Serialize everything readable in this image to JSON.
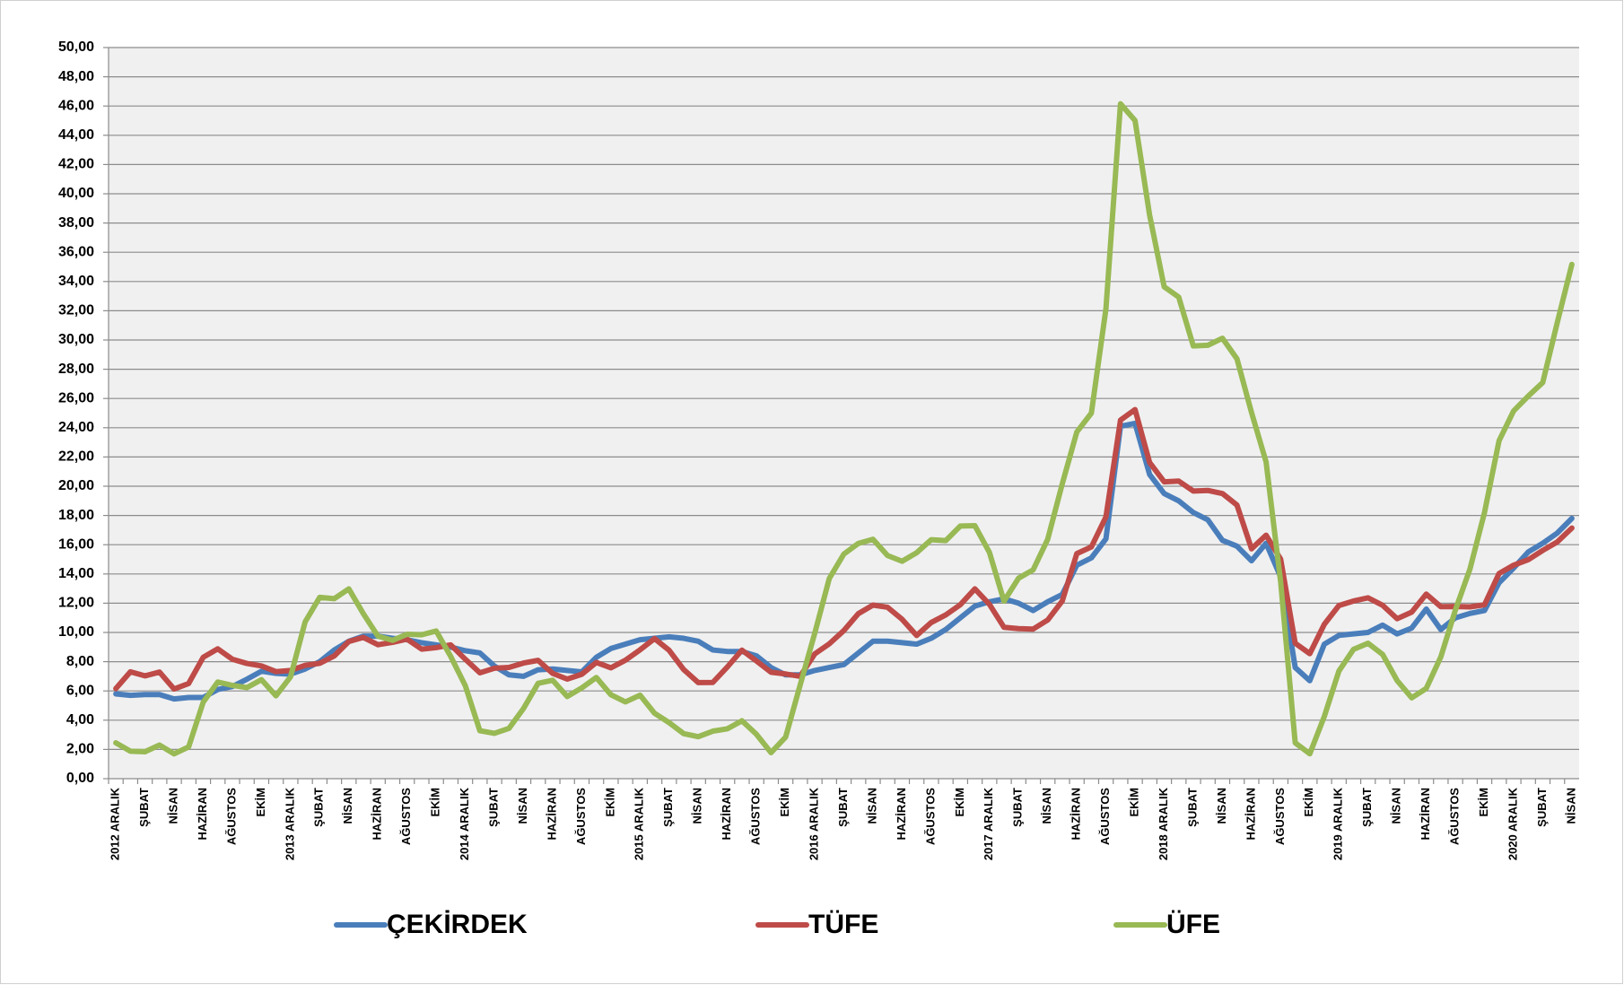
{
  "chart_data": {
    "type": "line",
    "categories": [
      "2012 ARALIK",
      null,
      "ŞUBAT",
      null,
      "NİSAN",
      null,
      "HAZİRAN",
      null,
      "AĞUSTOS",
      null,
      "EKİM",
      null,
      "2013 ARALIK",
      null,
      "ŞUBAT",
      null,
      "NİSAN",
      null,
      "HAZİRAN",
      null,
      "AĞUSTOS",
      null,
      "EKİM",
      null,
      "2014 ARALIK",
      null,
      "ŞUBAT",
      null,
      "NİSAN",
      null,
      "HAZİRAN",
      null,
      "AĞUSTOS",
      null,
      "EKİM",
      null,
      "2015 ARALIK",
      null,
      "ŞUBAT",
      null,
      "NİSAN",
      null,
      "HAZİRAN",
      null,
      "AĞUSTOS",
      null,
      "EKİM",
      null,
      "2016 ARALIK",
      null,
      "ŞUBAT",
      null,
      "NİSAN",
      null,
      "HAZİRAN",
      null,
      "AĞUSTOS",
      null,
      "EKİM",
      null,
      "2017 ARALIK",
      null,
      "ŞUBAT",
      null,
      "NİSAN",
      null,
      "HAZİRAN",
      null,
      "AĞUSTOS",
      null,
      "EKİM",
      null,
      "2018 ARALIK",
      null,
      "ŞUBAT",
      null,
      "NİSAN",
      null,
      "HAZİRAN",
      null,
      "AĞUSTOS",
      null,
      "EKİM",
      null,
      "2019 ARALIK",
      null,
      "ŞUBAT",
      null,
      "NİSAN",
      null,
      "HAZİRAN",
      null,
      "AĞUSTOS",
      null,
      "EKİM",
      null,
      "2020 ARALIK",
      null,
      "ŞUBAT",
      null,
      "NİSAN"
    ],
    "series": [
      {
        "name": "ÇEKİRDEK",
        "color": "#4a7ebb",
        "values": [
          5.8,
          5.7,
          5.75,
          5.75,
          5.45,
          5.55,
          5.55,
          6.1,
          6.3,
          6.8,
          7.35,
          7.2,
          7.15,
          7.5,
          8.0,
          8.8,
          9.4,
          9.75,
          9.75,
          9.6,
          9.5,
          9.3,
          9.15,
          9.0,
          8.75,
          8.6,
          7.7,
          7.1,
          7.0,
          7.45,
          7.5,
          7.4,
          7.3,
          8.3,
          8.9,
          9.2,
          9.5,
          9.6,
          9.7,
          9.6,
          9.4,
          8.8,
          8.7,
          8.7,
          8.4,
          7.6,
          7.1,
          7.1,
          7.4,
          7.6,
          7.8,
          8.6,
          9.4,
          9.4,
          9.3,
          9.2,
          9.6,
          10.2,
          11.0,
          11.8,
          12.1,
          12.3,
          12.0,
          11.5,
          12.1,
          12.6,
          14.6,
          15.1,
          16.4,
          24.1,
          24.3,
          20.8,
          19.5,
          19.0,
          18.2,
          17.7,
          16.3,
          15.9,
          14.9,
          16.1,
          13.8,
          7.6,
          6.7,
          9.2,
          9.8,
          9.9,
          10.0,
          10.5,
          9.9,
          10.3,
          11.6,
          10.2,
          11.0,
          11.3,
          11.5,
          13.4,
          14.4,
          15.5,
          16.1,
          16.8,
          17.8
        ]
      },
      {
        "name": "TÜFE",
        "color": "#be4b48",
        "values": [
          6.16,
          7.31,
          7.03,
          7.29,
          6.13,
          6.51,
          8.3,
          8.88,
          8.17,
          7.88,
          7.71,
          7.32,
          7.4,
          7.75,
          7.89,
          8.39,
          9.38,
          9.66,
          9.16,
          9.32,
          9.54,
          8.86,
          8.96,
          9.15,
          8.17,
          7.24,
          7.55,
          7.61,
          7.91,
          8.09,
          7.2,
          6.81,
          7.14,
          7.95,
          7.58,
          8.1,
          8.81,
          9.58,
          8.78,
          7.46,
          6.57,
          6.58,
          7.64,
          8.79,
          8.05,
          7.28,
          7.16,
          7.0,
          8.53,
          9.22,
          10.13,
          11.29,
          11.87,
          11.72,
          10.9,
          9.79,
          10.68,
          11.2,
          11.9,
          12.98,
          11.92,
          10.35,
          10.26,
          10.23,
          10.85,
          12.15,
          15.39,
          15.85,
          17.9,
          24.52,
          25.24,
          21.62,
          20.3,
          20.35,
          19.67,
          19.71,
          19.5,
          18.71,
          15.72,
          16.65,
          15.01,
          9.26,
          8.55,
          10.56,
          11.84,
          12.15,
          12.37,
          11.86,
          10.94,
          11.39,
          12.62,
          11.76,
          11.77,
          11.75,
          11.89,
          14.03,
          14.6,
          14.97,
          15.61,
          16.19,
          17.14
        ]
      },
      {
        "name": "ÜFE",
        "color": "#98b954",
        "values": [
          2.45,
          1.88,
          1.84,
          2.3,
          1.7,
          2.17,
          5.23,
          6.61,
          6.38,
          6.23,
          6.77,
          5.67,
          6.97,
          10.72,
          12.4,
          12.31,
          12.98,
          11.28,
          9.75,
          9.46,
          9.88,
          9.84,
          10.1,
          8.36,
          6.36,
          3.28,
          3.1,
          3.44,
          4.8,
          6.52,
          6.73,
          5.62,
          6.21,
          6.92,
          5.74,
          5.25,
          5.71,
          4.47,
          3.83,
          3.08,
          2.87,
          3.25,
          3.41,
          3.96,
          3.03,
          1.78,
          2.84,
          6.41,
          9.94,
          13.69,
          15.36,
          16.09,
          16.37,
          15.26,
          14.87,
          15.45,
          16.34,
          16.28,
          17.28,
          17.3,
          15.47,
          12.14,
          13.71,
          14.28,
          16.37,
          20.16,
          23.71,
          25.0,
          32.13,
          46.15,
          45.01,
          38.54,
          33.64,
          32.93,
          29.59,
          29.64,
          30.12,
          28.71,
          25.04,
          21.66,
          13.45,
          2.45,
          1.7,
          4.26,
          7.36,
          8.84,
          9.26,
          8.5,
          6.71,
          5.53,
          6.17,
          8.33,
          11.53,
          14.33,
          18.2,
          23.11,
          25.15,
          26.16,
          27.09,
          31.2,
          35.17
        ]
      }
    ],
    "ylim": [
      0,
      50
    ],
    "yticks": [
      {
        "value": 0,
        "label": "0,00"
      },
      {
        "value": 2,
        "label": "2,00"
      },
      {
        "value": 4,
        "label": "4,00"
      },
      {
        "value": 6,
        "label": "6,00"
      },
      {
        "value": 8,
        "label": "8,00"
      },
      {
        "value": 10,
        "label": "10,00"
      },
      {
        "value": 12,
        "label": "12,00"
      },
      {
        "value": 14,
        "label": "14,00"
      },
      {
        "value": 16,
        "label": "16,00"
      },
      {
        "value": 18,
        "label": "18,00"
      },
      {
        "value": 20,
        "label": "20,00"
      },
      {
        "value": 22,
        "label": "22,00"
      },
      {
        "value": 24,
        "label": "24,00"
      },
      {
        "value": 26,
        "label": "26,00"
      },
      {
        "value": 28,
        "label": "28,00"
      },
      {
        "value": 30,
        "label": "30,00"
      },
      {
        "value": 32,
        "label": "32,00"
      },
      {
        "value": 34,
        "label": "34,00"
      },
      {
        "value": 36,
        "label": "36,00"
      },
      {
        "value": 38,
        "label": "38,00"
      },
      {
        "value": 40,
        "label": "40,00"
      },
      {
        "value": 42,
        "label": "42,00"
      },
      {
        "value": 44,
        "label": "44,00"
      },
      {
        "value": 46,
        "label": "46,00"
      },
      {
        "value": 48,
        "label": "48,00"
      },
      {
        "value": 50,
        "label": "50,00"
      }
    ],
    "grid": true,
    "legend": "bottom"
  }
}
